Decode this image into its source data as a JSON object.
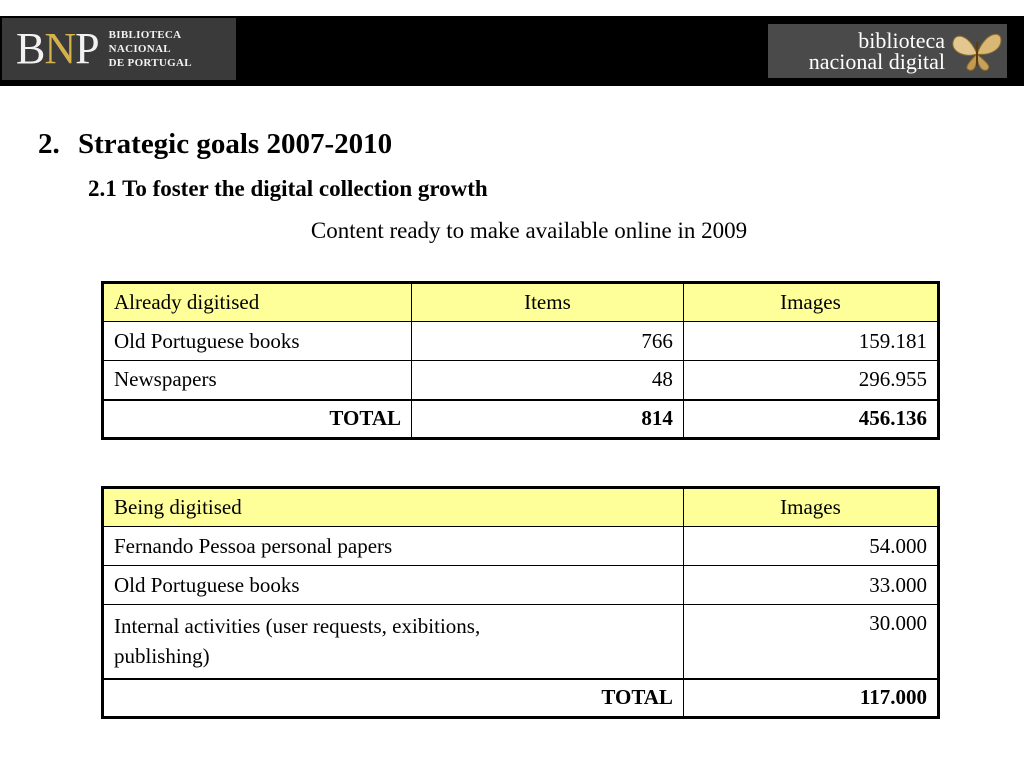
{
  "header": {
    "left_logo": {
      "mark_b": "B",
      "mark_n": "N",
      "mark_p": "P",
      "lines": [
        "BIBLIOTECA",
        "NACIONAL",
        "DE PORTUGAL"
      ]
    },
    "right_logo": {
      "lines": [
        "biblioteca",
        "nacional digital"
      ]
    }
  },
  "slide": {
    "number": "2.",
    "title": "Strategic goals 2007-2010",
    "subtitle": "2.1 To foster the digital collection growth",
    "caption": "Content ready to make available online in 2009"
  },
  "table1": {
    "headers": [
      "Already digitised",
      "Items",
      "Images"
    ],
    "rows": [
      [
        "Old Portuguese books",
        "766",
        "159.181"
      ],
      [
        "Newspapers",
        "48",
        "296.955"
      ]
    ],
    "total": [
      "TOTAL",
      "814",
      "456.136"
    ]
  },
  "table2": {
    "headers": [
      "Being digitised",
      "Images"
    ],
    "rows": [
      [
        "Fernando Pessoa personal papers",
        "54.000"
      ],
      [
        "Old Portuguese books",
        "33.000"
      ],
      [
        "Internal activities (user requests, exibitions, publishing)",
        "30.000"
      ]
    ],
    "total": [
      "TOTAL",
      "117.000"
    ]
  },
  "colors": {
    "banner": "#000000",
    "table_header": "#ffff99"
  }
}
